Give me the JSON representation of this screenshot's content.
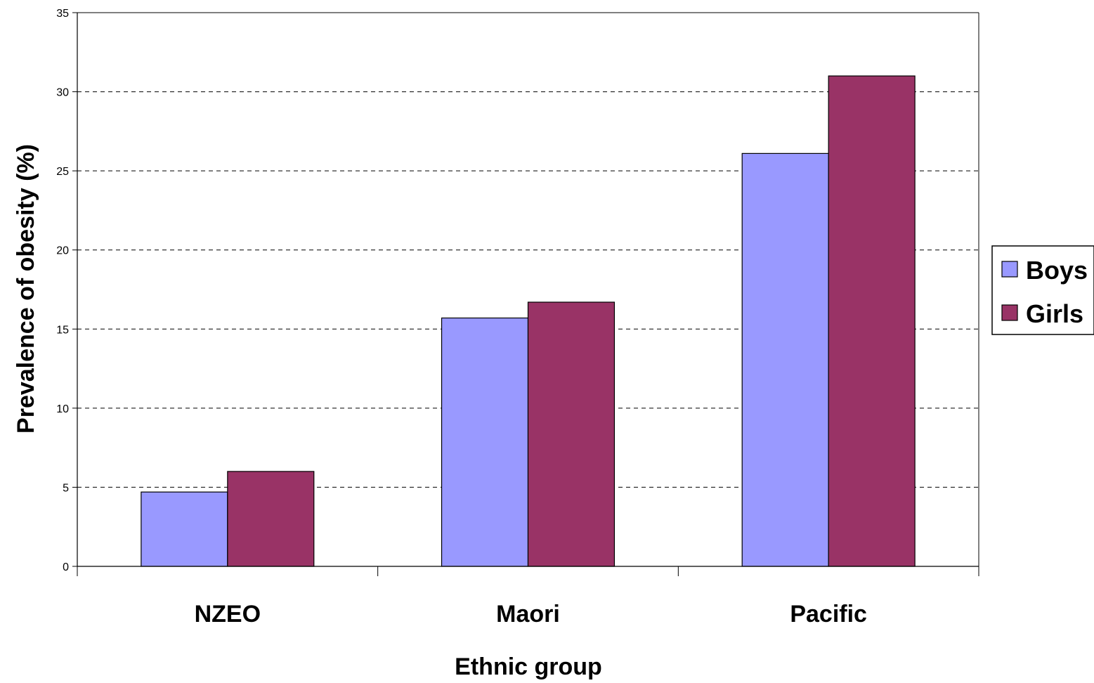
{
  "chart_data": {
    "type": "bar",
    "categories": [
      "NZEO",
      "Maori",
      "Pacific"
    ],
    "series": [
      {
        "name": "Boys",
        "values": [
          4.7,
          15.7,
          26.1
        ],
        "color": "#9999ff"
      },
      {
        "name": "Girls",
        "values": [
          6.0,
          16.7,
          31.0
        ],
        "color": "#993366"
      }
    ],
    "title": "",
    "xlabel": "Ethnic group",
    "ylabel": "Prevalence of obesity (%)",
    "ylim": [
      0,
      35
    ],
    "yticks": [
      0,
      5,
      10,
      15,
      20,
      25,
      30,
      35
    ],
    "grid": true,
    "legend_position": "right"
  }
}
